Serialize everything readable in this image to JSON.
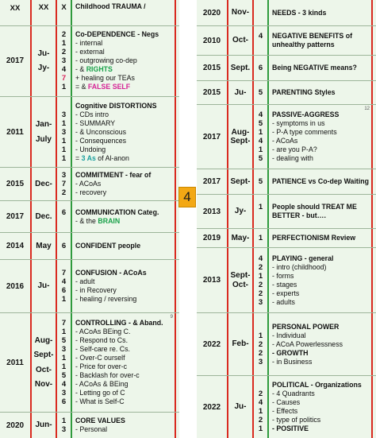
{
  "header": {
    "year": "XX",
    "month": "XX",
    "nums": "X",
    "title": "Childhood TRAUMA /"
  },
  "page_badge": "4",
  "left": [
    {
      "year": "",
      "month": "",
      "nums": [],
      "lines": []
    },
    {
      "year": "2017",
      "month": "Ju-\n\nJy-",
      "nums": [
        "2",
        "1",
        "2",
        "3",
        "4",
        "7",
        "1"
      ],
      "lines": [
        {
          "text": "Co-DEPENDENCE - Negs",
          "bold": true
        },
        {
          "text": "- internal"
        },
        {
          "text": "- external"
        },
        {
          "text": "- outgrowing co-dep"
        },
        {
          "text": "- & ",
          "accent": "RIGHTS",
          "accent_class": "green"
        },
        {
          "text": "+ healing our TEAs"
        },
        {
          "text": "= & ",
          "accent": "FALSE SELF",
          "accent_class": "magenta"
        }
      ]
    },
    {
      "year": "2011",
      "month": "Jan-\n\nJuly",
      "nums": [
        "",
        "3",
        "1",
        "3",
        "1",
        "1",
        "1"
      ],
      "lines": [
        {
          "text": "Cognitive DISTORTIONS",
          "bold": true
        },
        {
          "text": "- CDs intro"
        },
        {
          "text": "- SUMMARY"
        },
        {
          "text": "- & Unconscious"
        },
        {
          "text": "- Consequences"
        },
        {
          "text": "- Undoing"
        },
        {
          "text": "= ",
          "accent": "3 As",
          "accent_class": "teal",
          "after": " of Al-anon"
        }
      ]
    },
    {
      "year": "2015",
      "month": "Dec-",
      "nums": [
        "3",
        "7",
        "2"
      ],
      "lines": [
        {
          "text": "COMMITMENT - fear of",
          "bold": true
        },
        {
          "text": "- ACoAs"
        },
        {
          "text": "- recovery"
        }
      ]
    },
    {
      "year": "2017",
      "month": "Dec.",
      "nums": [
        "6",
        ""
      ],
      "lines": [
        {
          "text": "COMMUNICATION Categ.",
          "bold": true
        },
        {
          "text": "- & the ",
          "accent": "BRAIN",
          "accent_class": "green"
        }
      ]
    },
    {
      "year": "2014",
      "month": "May",
      "nums": [
        "6"
      ],
      "lines": [
        {
          "text": "CONFIDENT people",
          "bold": true
        }
      ]
    },
    {
      "year": "2016",
      "month": "Ju-",
      "nums": [
        "7",
        "4",
        "6",
        "1"
      ],
      "lines": [
        {
          "text": "CONFUSION - ACoAs",
          "bold": true
        },
        {
          "text": "- adult"
        },
        {
          "text": "- in Recovery"
        },
        {
          "text": "- healing / reversing"
        }
      ]
    },
    {
      "year": "2011",
      "month": "Aug-\n\nSept-\n\nOct-\n\nNov-",
      "nums": [
        "7",
        "1",
        "5",
        "3",
        "1",
        "1",
        "5",
        "4",
        "3",
        "6"
      ],
      "note": "9",
      "lines": [
        {
          "text": "CONTROLLING - & Aband.",
          "bold": true
        },
        {
          "text": "- ACoAs BEing C."
        },
        {
          "text": "- Respond to Cs."
        },
        {
          "text": "- Self-care re. Cs."
        },
        {
          "text": "- Over-C ourself"
        },
        {
          "text": "- Price for over-c"
        },
        {
          "text": "- Backlash for over-c"
        },
        {
          "text": "- ACoAs & BEing"
        },
        {
          "text": "- Letting go of C"
        },
        {
          "text": "- What is Self-C"
        }
      ]
    },
    {
      "year": "2020",
      "month": "Jun-",
      "nums": [
        "1",
        "3"
      ],
      "lines": [
        {
          "text": "CORE VALUES",
          "bold": true
        },
        {
          "text": "- Personal"
        }
      ]
    }
  ],
  "right": [
    {
      "year": "2020",
      "month": "Nov-",
      "nums": [
        ""
      ],
      "lines": [
        {
          "text": "NEEDS - 3 kinds",
          "bold": true
        }
      ]
    },
    {
      "year": "2010",
      "month": "Oct-",
      "nums": [
        "4",
        ""
      ],
      "lines": [
        {
          "text": "NEGATIVE BENEFITS of",
          "bold": true
        },
        {
          "text": "unhealthy patterns",
          "bold": true
        }
      ]
    },
    {
      "year": "2015",
      "month": "Sept.",
      "nums": [
        "6"
      ],
      "lines": [
        {
          "text": "Being NEGATIVE means?",
          "bold": true
        }
      ]
    },
    {
      "year": "2015",
      "month": "Ju-",
      "nums": [
        "5"
      ],
      "lines": [
        {
          "text": "PARENTING Styles",
          "bold": true
        }
      ]
    },
    {
      "year": "2017",
      "month": "Aug-\nSept-",
      "nums": [
        "4",
        "5",
        "1",
        "4",
        "1",
        "5"
      ],
      "note": "12",
      "lines": [
        {
          "text": "PASSIVE-AGGRESS",
          "bold": true
        },
        {
          "text": "- symptoms in us"
        },
        {
          "text": "- P-A type comments"
        },
        {
          "text": "- ACoAs"
        },
        {
          "text": "- are you P-A?"
        },
        {
          "text": "- dealing with"
        }
      ]
    },
    {
      "year": "2017",
      "month": "Sept-",
      "nums": [
        "5"
      ],
      "lines": [
        {
          "text": "PATIENCE vs Co-dep Waiting",
          "bold": true
        }
      ]
    },
    {
      "year": "2013",
      "month": "Jy-",
      "nums": [
        "1",
        ""
      ],
      "lines": [
        {
          "text": "People should TREAT ME",
          "bold": true
        },
        {
          "text": "BETTER - but….",
          "bold": true
        }
      ]
    },
    {
      "year": "2019",
      "month": "May-",
      "nums": [
        "1"
      ],
      "lines": [
        {
          "text": "PERFECTIONISM Review",
          "bold": true
        }
      ]
    },
    {
      "year": "2013",
      "month": "Sept-\nOct-",
      "nums": [
        "4",
        "2",
        "1",
        "2",
        "2",
        "3"
      ],
      "lines": [
        {
          "text": "PLAYING - general",
          "bold": true
        },
        {
          "text": "- intro (childhood)"
        },
        {
          "text": "- forms"
        },
        {
          "text": "- stages"
        },
        {
          "text": "- experts"
        },
        {
          "text": "- adults"
        }
      ]
    },
    {
      "year": "2022",
      "month": "Feb-",
      "nums": [
        "",
        "1",
        "2",
        "2",
        "3"
      ],
      "lines": [
        {
          "text": "PERSONAL POWER",
          "bold": true
        },
        {
          "text": "- Individual"
        },
        {
          "text": "- ACoA Powerlessness"
        },
        {
          "text": "- GROWTH",
          "bold": true
        },
        {
          "text": "- in Business"
        }
      ]
    },
    {
      "year": "2022",
      "month": "Ju-",
      "nums": [
        "",
        "2",
        "4",
        "1",
        "2",
        "1"
      ],
      "lines": [
        {
          "text": "POLITICAL - Organizations",
          "bold": true
        },
        {
          "text": "- 4 Quadrants"
        },
        {
          "text": "- Causes"
        },
        {
          "text": "- Effects"
        },
        {
          "text": "- type of politics"
        },
        {
          "text": "- POSITIVE",
          "bold": true
        }
      ]
    }
  ]
}
